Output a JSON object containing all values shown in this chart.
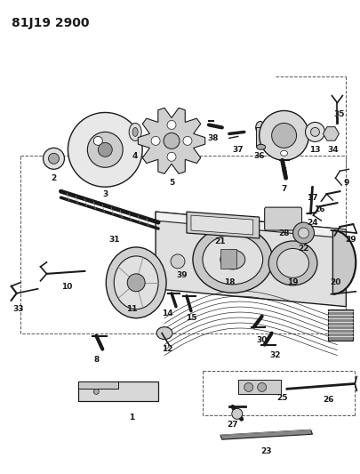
{
  "title": "81J19 2900",
  "bg_color": "#ffffff",
  "line_color": "#1a1a1a",
  "title_fontsize": 10,
  "label_fontsize": 6.5,
  "fig_width": 4.06,
  "fig_height": 5.33,
  "dpi": 100
}
